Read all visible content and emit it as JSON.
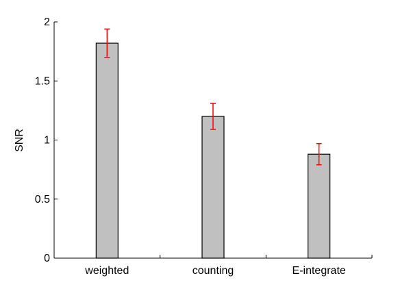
{
  "chart_data": {
    "type": "bar",
    "categories": [
      "weighted",
      "counting",
      "E-integrate"
    ],
    "values": [
      1.82,
      1.2,
      0.88
    ],
    "errors": [
      0.12,
      0.11,
      0.09
    ],
    "title": "",
    "xlabel": "",
    "ylabel": "SNR",
    "ylim": [
      0,
      2
    ],
    "yticks": [
      0,
      0.5,
      1,
      1.5,
      2
    ],
    "ytick_labels": [
      "0",
      "0.5",
      "1",
      "1.5",
      "2"
    ],
    "grid": false,
    "bar_color": "#c0c0c0",
    "bar_edge_color": "#000000",
    "error_color": "#ff0000"
  }
}
